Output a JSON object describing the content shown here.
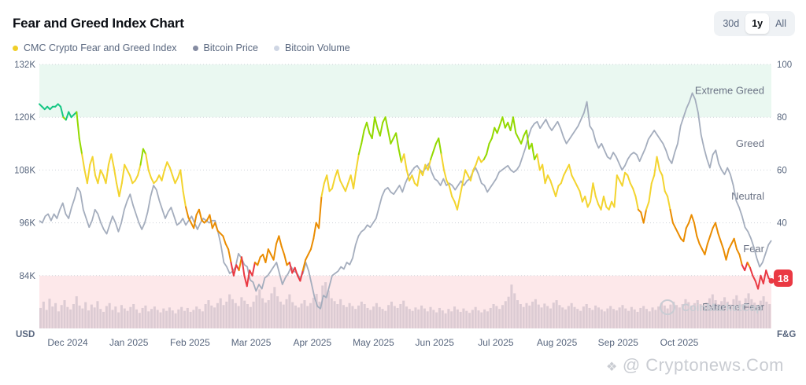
{
  "header": {
    "title": "Fear and Greed Index Chart",
    "range_buttons": [
      "30d",
      "1y",
      "All"
    ],
    "active_range": "1y"
  },
  "legend": [
    {
      "label": "CMC Crypto Fear and Greed Index",
      "color": "#f0ce28"
    },
    {
      "label": "Bitcoin Price",
      "color": "#858ca2"
    },
    {
      "label": "Bitcoin Volume",
      "color": "#cfd6e4"
    }
  ],
  "watermark": "@ Cryptonews.Com",
  "brand_watermark": "CoinMarketCap",
  "colors": {
    "extreme_greed_zone": "#eaf8f1",
    "extreme_fear_zone": "#fde8ea",
    "price_line": "#a4adbd",
    "volume_bar": "#dccbd3",
    "current_badge": "#ea3943",
    "extreme_fear": "#ea3943",
    "fear": "#ea8c00",
    "neutral": "#f3d42f",
    "greed": "#93d900",
    "extreme_greed": "#16c784"
  },
  "chart_data": {
    "type": "line",
    "title": "Fear and Greed Index Chart",
    "x_ticks": [
      "Dec 2024",
      "Jan 2025",
      "Feb 2025",
      "Mar 2025",
      "Apr 2025",
      "May 2025",
      "Jun 2025",
      "Jul 2025",
      "Aug 2025",
      "Sep 2025",
      "Oct 2025"
    ],
    "y_left": {
      "label": "USD",
      "ticks": [
        "132K",
        "120K",
        "108K",
        "96K",
        "84K"
      ],
      "range": [
        72000,
        132000
      ]
    },
    "y_right": {
      "label": "F&G",
      "ticks": [
        "100",
        "80",
        "60",
        "40"
      ],
      "range": [
        0,
        100
      ]
    },
    "zones": [
      {
        "label": "Extreme Greed",
        "range": [
          80,
          100
        ]
      },
      {
        "label": "Greed",
        "level": 80
      },
      {
        "label": "Neutral",
        "level": 60
      },
      {
        "label": "Fear",
        "level": 40
      },
      {
        "label": "Extreme Fear",
        "range": [
          0,
          20
        ]
      }
    ],
    "current_value": "18",
    "series": [
      {
        "name": "CMC Crypto Fear and Greed Index",
        "axis": "right",
        "values": [
          85,
          84,
          83,
          84,
          83,
          84,
          84,
          85,
          84,
          80,
          79,
          82,
          80,
          81,
          82,
          72,
          66,
          60,
          55,
          62,
          65,
          58,
          55,
          60,
          58,
          55,
          62,
          66,
          61,
          55,
          50,
          55,
          62,
          60,
          58,
          55,
          56,
          58,
          62,
          68,
          66,
          60,
          57,
          55,
          56,
          58,
          56,
          60,
          63,
          61,
          58,
          55,
          57,
          60,
          52,
          46,
          42,
          40,
          38,
          43,
          45,
          41,
          40,
          41,
          43,
          38,
          40,
          37,
          36,
          35,
          32,
          30,
          25,
          20,
          24,
          22,
          27,
          20,
          16,
          22,
          20,
          25,
          24,
          27,
          28,
          25,
          30,
          28,
          26,
          32,
          35,
          31,
          28,
          24,
          25,
          21,
          23,
          20,
          18,
          22,
          26,
          28,
          30,
          34,
          40,
          38,
          50,
          55,
          58,
          52,
          53,
          57,
          60,
          56,
          54,
          52,
          55,
          58,
          53,
          60,
          66,
          70,
          75,
          78,
          74,
          72,
          80,
          76,
          73,
          78,
          80,
          75,
          70,
          72,
          74,
          68,
          63,
          66,
          60,
          56,
          58,
          55,
          54,
          60,
          58,
          62,
          60,
          64,
          67,
          70,
          72,
          66,
          60,
          56,
          54,
          50,
          48,
          45,
          50,
          55,
          60,
          58,
          56,
          60,
          62,
          65,
          63,
          64,
          66,
          70,
          72,
          76,
          74,
          77,
          80,
          76,
          78,
          75,
          80,
          74,
          72,
          70,
          73,
          75,
          68,
          70,
          64,
          66,
          60,
          62,
          55,
          58,
          56,
          53,
          50,
          54,
          55,
          58,
          60,
          62,
          58,
          56,
          54,
          52,
          48,
          50,
          46,
          48,
          55,
          50,
          47,
          45,
          50,
          46,
          45,
          48,
          46,
          58,
          56,
          54,
          59,
          58,
          55,
          53,
          50,
          45,
          44,
          40,
          45,
          48,
          55,
          58,
          65,
          60,
          58,
          52,
          50,
          45,
          40,
          38,
          36,
          34,
          33,
          38,
          40,
          43,
          40,
          35,
          32,
          30,
          28,
          32,
          35,
          38,
          40,
          36,
          33,
          30,
          26,
          30,
          32,
          34,
          30,
          28,
          24,
          22,
          25,
          23,
          20,
          18,
          15,
          20,
          17,
          22,
          19,
          18
        ]
      },
      {
        "name": "Bitcoin Price",
        "axis": "left",
        "values": [
          96500,
          96000,
          97500,
          98000,
          96500,
          98000,
          97000,
          99000,
          100500,
          98000,
          97000,
          99500,
          101500,
          104000,
          103000,
          99000,
          97000,
          95000,
          96500,
          99000,
          98000,
          96000,
          94500,
          93500,
          95500,
          97500,
          96000,
          94000,
          96000,
          99000,
          101000,
          102500,
          100000,
          98000,
          96000,
          94500,
          96000,
          98500,
          102000,
          104500,
          103500,
          101000,
          99000,
          97000,
          98500,
          99500,
          97500,
          95500,
          96000,
          97000,
          95500,
          96500,
          97500,
          96000,
          94500,
          96000,
          97000,
          96500,
          96000,
          96500,
          96500,
          94000,
          91000,
          87000,
          86000,
          84500,
          85000,
          86000,
          89000,
          88000,
          86500,
          86000,
          83000,
          82500,
          80500,
          82000,
          81000,
          83500,
          84000,
          85000,
          86000,
          87000,
          84500,
          82000,
          83500,
          84500,
          86000,
          85000,
          84500,
          83500,
          84500,
          87000,
          85000,
          82000,
          79000,
          77000,
          76500,
          79500,
          79000,
          81500,
          84000,
          84500,
          85000,
          86000,
          85500,
          87000,
          86500,
          88000,
          91000,
          93000,
          94000,
          94500,
          95500,
          95000,
          96000,
          97000,
          99500,
          102000,
          103500,
          104000,
          103000,
          102500,
          103500,
          104500,
          103000,
          105000,
          106500,
          107500,
          108500,
          109000,
          108000,
          107500,
          108500,
          109500,
          107500,
          106000,
          105500,
          104500,
          106000,
          104500,
          105000,
          104500,
          103500,
          104500,
          105500,
          104500,
          105500,
          106000,
          107500,
          108500,
          107000,
          105000,
          104500,
          103000,
          104000,
          105000,
          106000,
          107500,
          108000,
          108500,
          109000,
          108000,
          107500,
          108000,
          109000,
          111000,
          113000,
          115500,
          117500,
          118500,
          119000,
          117500,
          118500,
          119500,
          118000,
          117000,
          118000,
          119000,
          117500,
          115500,
          114000,
          115000,
          116000,
          117000,
          118000,
          119500,
          121000,
          123500,
          118000,
          117000,
          114500,
          113000,
          114000,
          112500,
          111000,
          110500,
          112000,
          111000,
          109500,
          108000,
          109000,
          110500,
          111500,
          112000,
          111500,
          110000,
          111500,
          113000,
          115000,
          116000,
          117000,
          116000,
          115000,
          114000,
          112500,
          110500,
          109500,
          112000,
          114000,
          118000,
          120000,
          122000,
          123500,
          125500,
          124000,
          121000,
          116000,
          113000,
          110500,
          108500,
          111500,
          112500,
          109500,
          108000,
          107000,
          108500,
          107000,
          104500,
          101000,
          99500,
          97500,
          95000,
          94000,
          92500,
          90500,
          88000,
          86000,
          87000,
          89000,
          91000,
          92000
        ]
      },
      {
        "name": "Bitcoin Volume",
        "axis": "none",
        "values": [
          0.42,
          0.55,
          0.38,
          0.61,
          0.45,
          0.52,
          0.35,
          0.48,
          0.58,
          0.44,
          0.39,
          0.5,
          0.66,
          0.47,
          0.41,
          0.54,
          0.37,
          0.49,
          0.43,
          0.56,
          0.4,
          0.34,
          0.46,
          0.52,
          0.38,
          0.45,
          0.33,
          0.48,
          0.41,
          0.36,
          0.44,
          0.5,
          0.39,
          0.32,
          0.42,
          0.47,
          0.35,
          0.4,
          0.45,
          0.38,
          0.33,
          0.41,
          0.36,
          0.43,
          0.37,
          0.31,
          0.39,
          0.44,
          0.36,
          0.42,
          0.34,
          0.38,
          0.45,
          0.4,
          0.35,
          0.5,
          0.58,
          0.47,
          0.43,
          0.52,
          0.62,
          0.48,
          0.55,
          0.7,
          0.6,
          0.52,
          0.46,
          0.64,
          0.57,
          0.5,
          0.44,
          0.55,
          0.68,
          0.8,
          0.62,
          0.53,
          0.58,
          0.72,
          0.85,
          0.66,
          0.55,
          0.49,
          0.6,
          0.7,
          0.54,
          0.47,
          0.43,
          0.51,
          0.58,
          0.46,
          0.52,
          0.63,
          0.71,
          0.55,
          0.88,
          0.95,
          0.78,
          0.62,
          0.56,
          0.5,
          0.6,
          0.48,
          0.44,
          0.52,
          0.46,
          0.4,
          0.47,
          0.55,
          0.5,
          0.42,
          0.38,
          0.45,
          0.52,
          0.44,
          0.4,
          0.36,
          0.48,
          0.55,
          0.46,
          0.42,
          0.5,
          0.57,
          0.45,
          0.4,
          0.36,
          0.43,
          0.39,
          0.47,
          0.41,
          0.35,
          0.44,
          0.38,
          0.33,
          0.42,
          0.37,
          0.31,
          0.4,
          0.35,
          0.45,
          0.39,
          0.34,
          0.41,
          0.36,
          0.32,
          0.38,
          0.44,
          0.37,
          0.33,
          0.39,
          0.35,
          0.42,
          0.5,
          0.46,
          0.4,
          0.48,
          0.56,
          0.65,
          0.9,
          0.72,
          0.58,
          0.5,
          0.44,
          0.52,
          0.47,
          0.55,
          0.6,
          0.49,
          0.43,
          0.51,
          0.46,
          0.41,
          0.53,
          0.58,
          0.48,
          0.43,
          0.39,
          0.46,
          0.52,
          0.44,
          0.4,
          0.36,
          0.45,
          0.5,
          0.42,
          0.38,
          0.47,
          0.43,
          0.39,
          0.35,
          0.41,
          0.46,
          0.4,
          0.37,
          0.43,
          0.48,
          0.41,
          0.36,
          0.44,
          0.39,
          0.34,
          0.42,
          0.46,
          0.4,
          0.35,
          0.43,
          0.38,
          0.45,
          0.52,
          0.47,
          0.41,
          0.49,
          0.55,
          0.48,
          0.43,
          0.5,
          0.6,
          0.54,
          0.47,
          0.52,
          0.58,
          0.5,
          0.45,
          0.53,
          0.62,
          0.7,
          0.58,
          0.5,
          0.56,
          0.64,
          0.55,
          0.49,
          0.6,
          0.68,
          0.57,
          0.5,
          0.62,
          0.72,
          0.6,
          0.53,
          0.48,
          0.57,
          0.66,
          0.55,
          0.5
        ]
      }
    ]
  }
}
